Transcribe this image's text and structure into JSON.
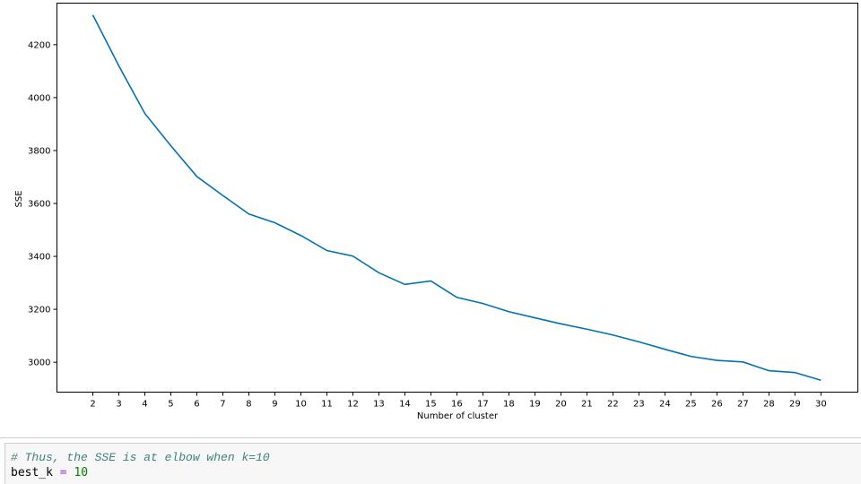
{
  "chart_data": {
    "type": "line",
    "title": "",
    "xlabel": "Number of cluster",
    "ylabel": "SSE",
    "x": [
      2,
      3,
      4,
      5,
      6,
      7,
      8,
      9,
      10,
      11,
      12,
      13,
      14,
      15,
      16,
      17,
      18,
      19,
      20,
      21,
      22,
      23,
      24,
      25,
      26,
      27,
      28,
      29,
      30
    ],
    "series": [
      {
        "values": [
          4312,
          4120,
          3940,
          3818,
          3702,
          3630,
          3560,
          3527,
          3479,
          3422,
          3401,
          3338,
          3294,
          3307,
          3245,
          3222,
          3191,
          3168,
          3145,
          3125,
          3103,
          3077,
          3049,
          3022,
          3007,
          3001,
          2968,
          2961,
          2932
        ],
        "color": "#0072b2"
      }
    ],
    "xticks": [
      2,
      3,
      4,
      5,
      6,
      7,
      8,
      9,
      10,
      11,
      12,
      13,
      14,
      15,
      16,
      17,
      18,
      19,
      20,
      21,
      22,
      23,
      24,
      25,
      26,
      27,
      28,
      29,
      30
    ],
    "yticks": [
      3000,
      3200,
      3400,
      3600,
      3800,
      4000,
      4200
    ],
    "xlim": [
      0.62,
      31.42
    ],
    "ylim": [
      2887,
      4357
    ],
    "grid": false,
    "legend": "none"
  },
  "code_cell": {
    "comment": "# Thus, the SSE is at elbow when k=10",
    "var": "best_k",
    "op": "=",
    "value": "10"
  }
}
